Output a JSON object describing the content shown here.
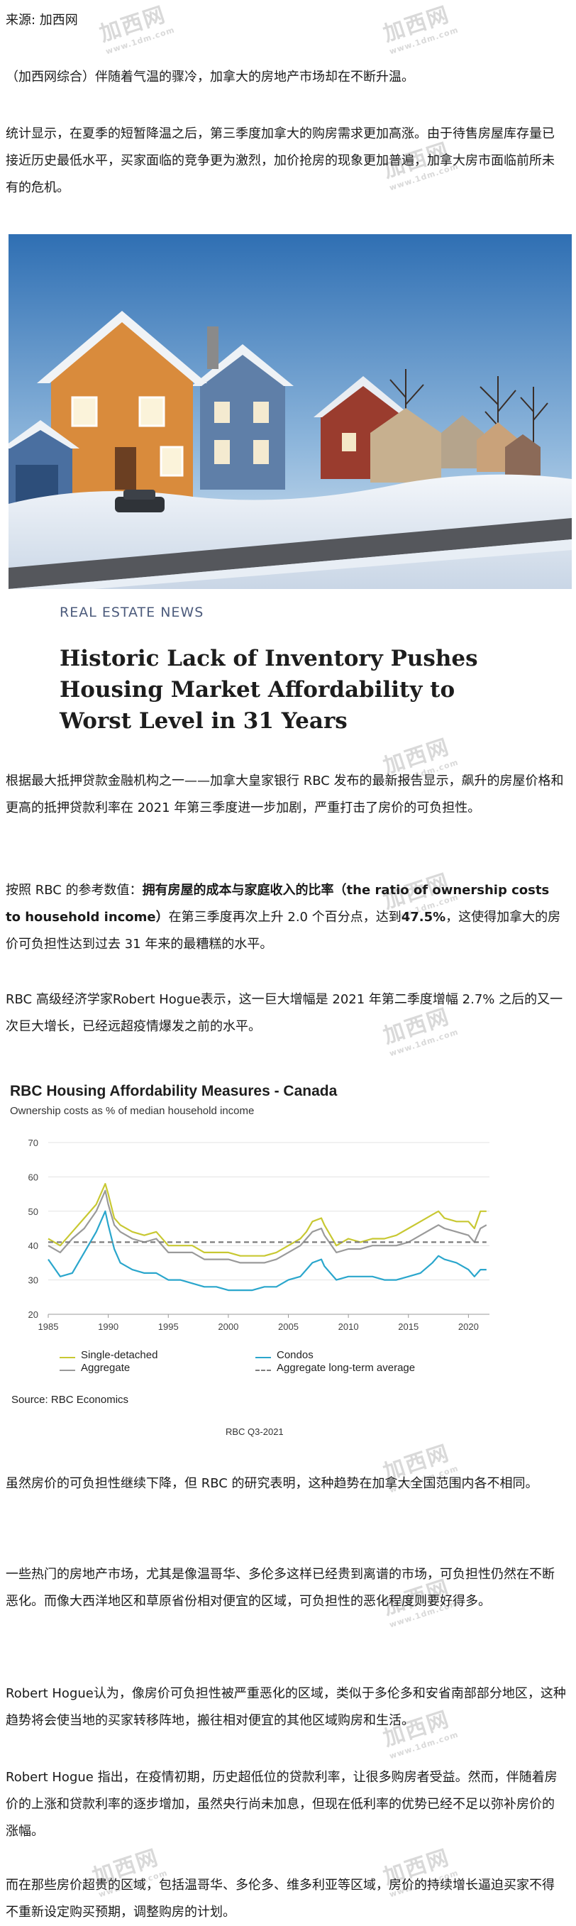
{
  "source_line": "来源: 加西网",
  "paragraphs": {
    "p1": "（加西网综合）伴随着气温的骤冷，加拿大的房地产市场却在不断升温。",
    "p2": "统计显示，在夏季的短暂降温之后，第三季度加拿大的购房需求更加高涨。由于待售房屋库存量已接近历史最低水平，买家面临的竞争更为激烈，加价抢房的现象更加普遍，加拿大房市面临前所未有的危机。",
    "p3": "根据最大抵押贷款金融机构之一——加拿大皇家银行 RBC 发布的最新报告显示，飙升的房屋价格和更高的抵押贷款利率在 2021 年第三季度进一步加剧，严重打击了房价的可负担性。",
    "p4a": "按照 RBC 的参考数值：",
    "p4b": "拥有房屋的成本与家庭收入的比率（the ratio of ownership costs to household income）",
    "p4c": "在第三季度再次上升 2.0 个百分点，达到",
    "p4d": "47.5%",
    "p4e": "，这使得加拿大的房价可负担性达到过去 31 年来的最糟糕的水平。",
    "p5": "RBC 高级经济学家Robert Hogue表示，这一巨大增幅是 2021 年第二季度增幅 2.7% 之后的又一次巨大增长，已经远超疫情爆发之前的水平。",
    "p6": "虽然房价的可负担性继续下降，但 RBC 的研究表明，这种趋势在加拿大全国范围内各不相同。",
    "p7": "一些热门的房地产市场，尤其是像温哥华、多伦多这样已经贵到离谱的市场，可负担性仍然在不断恶化。而像大西洋地区和草原省份相对便宜的区域，可负担性的恶化程度则要好得多。",
    "p8": "Robert Hogue认为，像房价可负担性被严重恶化的区域，类似于多伦多和安省南部部分地区，这种趋势将会使当地的买家转移阵地，搬往相对便宜的其他区域购房和生活。",
    "p9": "Robert Hogue 指出，在疫情初期，历史超低位的贷款利率，让很多购房者受益。然而，伴随着房价的上涨和贷款利率的逐步增加，虽然央行尚未加息，但现在低利率的优势已经不足以弥补房价的涨幅。",
    "p10": "而在那些房价超贵的区域，包括温哥华、多伦多、维多利亚等区域，房价的持续增长逼迫买家不得不重新设定购买预期，调整购房的计划。"
  },
  "news_card": {
    "tag": "REAL ESTATE NEWS",
    "headline": "Historic Lack of Inventory Pushes Housing Market Affordability to Worst Level in 31 Years"
  },
  "watermark": {
    "text": "加西网",
    "sub": "www.1dm.com"
  },
  "chart_data": {
    "type": "line",
    "title": "RBC Housing Affordability Measures - Canada",
    "subtitle": "Ownership costs as % of median household income",
    "ylim": [
      20,
      70
    ],
    "yticks": [
      20,
      30,
      40,
      50,
      60,
      70
    ],
    "xlim": [
      1985,
      2021.75
    ],
    "xticks": [
      1985,
      1990,
      1995,
      2000,
      2005,
      2010,
      2015,
      2020
    ],
    "grid": true,
    "legend_position": "bottom",
    "x": [
      1985,
      1986,
      1987,
      1988,
      1989,
      1989.75,
      1990,
      1990.5,
      1991,
      1992,
      1993,
      1994,
      1995,
      1996,
      1997,
      1998,
      1999,
      2000,
      2001,
      2002,
      2003,
      2004,
      2005,
      2006,
      2006.5,
      2007,
      2007.75,
      2008,
      2009,
      2010,
      2011,
      2012,
      2013,
      2014,
      2015,
      2016,
      2017,
      2017.5,
      2018,
      2019,
      2020,
      2020.5,
      2021,
      2021.5
    ],
    "series": [
      {
        "name": "Single-detached",
        "color": "#c8c832",
        "dash": false,
        "values": [
          42,
          40,
          44,
          48,
          52,
          58,
          55,
          48,
          46,
          44,
          43,
          44,
          40,
          40,
          40,
          38,
          38,
          38,
          37,
          37,
          37,
          38,
          40,
          42,
          44,
          47,
          48,
          46,
          40,
          42,
          41,
          42,
          42,
          43,
          45,
          47,
          49,
          50,
          48,
          47,
          47,
          45,
          50,
          50
        ]
      },
      {
        "name": "Aggregate",
        "color": "#9a9a9a",
        "dash": false,
        "values": [
          40,
          38,
          42,
          45,
          50,
          56,
          52,
          46,
          44,
          42,
          41,
          42,
          38,
          38,
          38,
          36,
          36,
          36,
          35,
          35,
          35,
          36,
          38,
          40,
          42,
          44,
          45,
          43,
          38,
          39,
          39,
          40,
          40,
          40,
          41,
          43,
          45,
          46,
          45,
          44,
          43,
          41,
          45,
          46
        ]
      },
      {
        "name": "Condos",
        "color": "#2aa6cc",
        "dash": false,
        "values": [
          36,
          31,
          32,
          38,
          44,
          50,
          46,
          39,
          35,
          33,
          32,
          32,
          30,
          30,
          29,
          28,
          28,
          27,
          27,
          27,
          28,
          28,
          30,
          31,
          33,
          35,
          36,
          34,
          30,
          31,
          31,
          31,
          30,
          30,
          31,
          32,
          35,
          37,
          36,
          35,
          33,
          31,
          33,
          33
        ]
      },
      {
        "name": "Aggregate long-term average",
        "color": "#7d7d7d",
        "dash": true,
        "values": [
          41,
          41,
          41,
          41,
          41,
          41,
          41,
          41,
          41,
          41,
          41,
          41,
          41,
          41,
          41,
          41,
          41,
          41,
          41,
          41,
          41,
          41,
          41,
          41,
          41,
          41,
          41,
          41,
          41,
          41,
          41,
          41,
          41,
          41,
          41,
          41,
          41,
          41,
          41,
          41,
          41,
          41,
          41,
          41
        ]
      }
    ],
    "source": "Source: RBC Economics",
    "ref": "RBC Q3-2021"
  }
}
